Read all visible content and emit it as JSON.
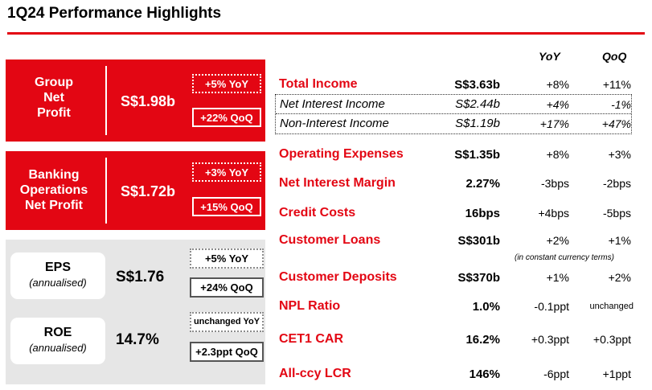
{
  "title": "1Q24 Performance Highlights",
  "colors": {
    "accent": "#e30613",
    "panel": "#e6e6e6"
  },
  "group_net_profit": {
    "label_lines": [
      "Group",
      "Net",
      "Profit"
    ],
    "value": "S$1.98b",
    "yoy": "+5% YoY",
    "qoq": "+22% QoQ"
  },
  "banking_ops": {
    "label_lines": [
      "Banking",
      "Operations",
      "Net Profit"
    ],
    "value": "S$1.72b",
    "yoy": "+3% YoY",
    "qoq": "+15% QoQ"
  },
  "eps": {
    "label": "EPS",
    "sublabel": "(annualised)",
    "value": "S$1.76",
    "yoy": "+5% YoY",
    "qoq": "+24% QoQ"
  },
  "roe": {
    "label": "ROE",
    "sublabel": "(annualised)",
    "value": "14.7%",
    "yoy": "unchanged YoY",
    "qoq": "+2.3ppt QoQ"
  },
  "table": {
    "headers": {
      "yoy": "YoY",
      "qoq": "QoQ"
    },
    "rows": [
      {
        "name": "Total Income",
        "value": "S$3.63b",
        "yoy": "+8%",
        "qoq": "+11%"
      },
      {
        "name": "Operating Expenses",
        "value": "S$1.35b",
        "yoy": "+8%",
        "qoq": "+3%"
      },
      {
        "name": "Net Interest Margin",
        "value": "2.27%",
        "yoy": "-3bps",
        "qoq": "-2bps"
      },
      {
        "name": "Credit Costs",
        "value": "16bps",
        "yoy": "+4bps",
        "qoq": "-5bps"
      },
      {
        "name": "Customer Loans",
        "value": "S$301b",
        "yoy": "+2%",
        "qoq": "+1%"
      },
      {
        "name": "Customer Deposits",
        "value": "S$370b",
        "yoy": "+1%",
        "qoq": "+2%"
      },
      {
        "name": "NPL Ratio",
        "value": "1.0%",
        "yoy": "-0.1ppt",
        "qoq": "unchanged"
      },
      {
        "name": "CET1 CAR",
        "value": "16.2%",
        "yoy": "+0.3ppt",
        "qoq": "+0.3ppt"
      },
      {
        "name": "All-ccy LCR",
        "value": "146%",
        "yoy": "-6ppt",
        "qoq": "+1ppt"
      }
    ],
    "sub_rows": [
      {
        "name": "Net Interest Income",
        "value": "S$2.44b",
        "yoy": "+4%",
        "qoq": "-1%"
      },
      {
        "name": "Non-Interest Income",
        "value": "S$1.19b",
        "yoy": "+17%",
        "qoq": "+47%"
      }
    ],
    "loans_note": "(in constant currency terms)"
  }
}
